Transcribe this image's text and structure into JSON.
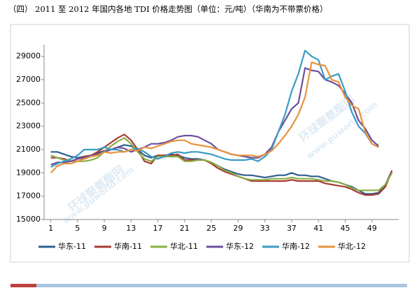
{
  "chart_data": {
    "type": "line",
    "title": "（四） 2011 至 2012 年国内各地 TDI 价格走势图（单位：元/吨）（华南为不带票价格）",
    "watermark": [
      "环球聚氨酯网",
      "www.puworld.com"
    ],
    "x": [
      1,
      2,
      3,
      4,
      5,
      6,
      7,
      8,
      9,
      10,
      11,
      12,
      13,
      14,
      15,
      16,
      17,
      18,
      19,
      20,
      21,
      22,
      23,
      24,
      25,
      26,
      27,
      28,
      29,
      30,
      31,
      32,
      33,
      34,
      35,
      36,
      37,
      38,
      39,
      40,
      41,
      42,
      43,
      44,
      45,
      46,
      47,
      48,
      49,
      50,
      51,
      52
    ],
    "xlim": [
      0,
      53
    ],
    "xticks": [
      1,
      5,
      9,
      13,
      17,
      21,
      25,
      29,
      33,
      37,
      41,
      45,
      49
    ],
    "ylim": [
      15000,
      30000
    ],
    "yticks": [
      15000,
      17000,
      19000,
      21000,
      23000,
      25000,
      27000,
      29000
    ],
    "grid": false,
    "legend": "bottom",
    "series": [
      {
        "name": "华东-11",
        "color": "#2f5f8f",
        "values": [
          20800,
          20800,
          20600,
          20400,
          20300,
          20400,
          20500,
          20700,
          20900,
          21000,
          21200,
          21400,
          21300,
          21000,
          20500,
          20300,
          20500,
          20500,
          20600,
          20500,
          20300,
          20200,
          20200,
          20100,
          19900,
          19600,
          19300,
          19100,
          18900,
          18800,
          18800,
          18700,
          18600,
          18700,
          18800,
          18800,
          19000,
          18800,
          18800,
          18700,
          18700,
          18500,
          18300,
          18200,
          18000,
          17800,
          17500,
          17200,
          17200,
          17300,
          18000,
          19200
        ]
      },
      {
        "name": "华南-11",
        "color": "#a83a35",
        "values": [
          20300,
          20300,
          20200,
          20000,
          20200,
          20400,
          20500,
          20800,
          21200,
          21600,
          22000,
          22300,
          21800,
          21000,
          20000,
          19800,
          20500,
          20500,
          20500,
          20600,
          20100,
          20100,
          20100,
          20100,
          19800,
          19400,
          19100,
          18900,
          18700,
          18500,
          18300,
          18300,
          18300,
          18300,
          18300,
          18300,
          18400,
          18300,
          18300,
          18300,
          18300,
          18100,
          18000,
          17900,
          17800,
          17600,
          17300,
          17100,
          17100,
          17200,
          17800,
          19200
        ]
      },
      {
        "name": "华北-11",
        "color": "#8bae42",
        "values": [
          20500,
          20300,
          20100,
          20000,
          20000,
          20000,
          20100,
          20300,
          20800,
          21300,
          21700,
          22000,
          21500,
          20800,
          20200,
          20000,
          20400,
          20400,
          20400,
          20400,
          20000,
          20000,
          20100,
          20100,
          19900,
          19600,
          19200,
          19000,
          18700,
          18500,
          18400,
          18400,
          18400,
          18500,
          18500,
          18500,
          18600,
          18500,
          18500,
          18500,
          18400,
          18300,
          18300,
          18200,
          18000,
          17700,
          17500,
          17500,
          17500,
          17500,
          18000,
          19000
        ]
      },
      {
        "name": "华东-12",
        "color": "#6d4f9c",
        "values": [
          19700,
          19900,
          19900,
          20000,
          20200,
          20300,
          20500,
          20600,
          20800,
          21000,
          21200,
          21100,
          20800,
          21000,
          21200,
          21500,
          21500,
          21600,
          21800,
          22100,
          22200,
          22200,
          22100,
          21800,
          21500,
          21000,
          20800,
          20600,
          20500,
          20400,
          20300,
          20300,
          20600,
          21200,
          22500,
          23500,
          24500,
          25000,
          28000,
          27800,
          27700,
          27000,
          26800,
          26500,
          25800,
          25000,
          23500,
          22800,
          21800,
          21300,
          null,
          null
        ]
      },
      {
        "name": "华南-12",
        "color": "#3a9cc3",
        "values": [
          19500,
          19800,
          20000,
          20200,
          20500,
          21000,
          21000,
          21000,
          21200,
          21000,
          21000,
          20800,
          21000,
          21100,
          20800,
          20400,
          20200,
          20400,
          20700,
          20800,
          20700,
          20800,
          20800,
          20700,
          20600,
          20400,
          20200,
          20100,
          20100,
          20100,
          20200,
          20000,
          20400,
          21000,
          22500,
          24000,
          26000,
          27500,
          29500,
          29000,
          28700,
          27000,
          27300,
          27500,
          26000,
          24200,
          23000,
          22400,
          21500,
          21200,
          null,
          null
        ]
      },
      {
        "name": "华北-12",
        "color": "#e8923c",
        "values": [
          19000,
          19600,
          19800,
          19800,
          20000,
          20200,
          20400,
          20500,
          20800,
          20700,
          20800,
          20800,
          21000,
          20900,
          21200,
          21100,
          21300,
          21500,
          21700,
          21800,
          21800,
          21500,
          21400,
          21300,
          21200,
          21000,
          20800,
          20600,
          20500,
          20500,
          20500,
          20400,
          20600,
          20900,
          21500,
          22200,
          23000,
          24000,
          25500,
          28500,
          28300,
          28200,
          27000,
          26800,
          25500,
          24800,
          24500,
          22500,
          21500,
          21200,
          null,
          null
        ]
      }
    ]
  }
}
